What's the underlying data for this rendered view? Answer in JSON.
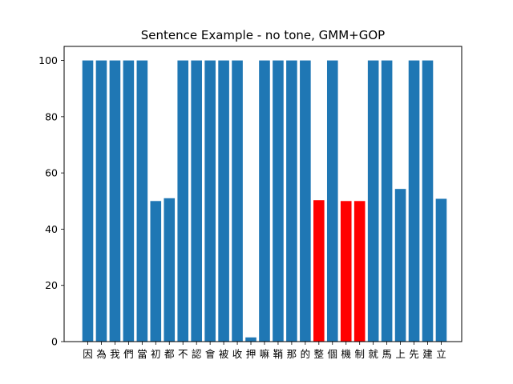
{
  "chart_data": {
    "type": "bar",
    "title": "Sentence Example - no tone, GMM+GOP",
    "xlabel": "",
    "ylabel": "",
    "ylim": [
      0,
      105
    ],
    "yticks": [
      0,
      20,
      40,
      60,
      80,
      100
    ],
    "grid": false,
    "categories": [
      "因",
      "為",
      "我",
      "們",
      "當",
      "初",
      "都",
      "不",
      "認",
      "會",
      "被",
      "收",
      "押",
      "嘛",
      "鞘",
      "那",
      "的",
      "整",
      "個",
      "機",
      "制",
      "就",
      "馬",
      "上",
      "先",
      "建",
      "立"
    ],
    "values": [
      100,
      100,
      100,
      100,
      100,
      50,
      51,
      100,
      100,
      100,
      100,
      100,
      1.5,
      100,
      100,
      100,
      100,
      50.3,
      100,
      50,
      50,
      100,
      100,
      54.3,
      100,
      100,
      50.8
    ],
    "bar_colors": [
      "#1f77b4",
      "#1f77b4",
      "#1f77b4",
      "#1f77b4",
      "#1f77b4",
      "#1f77b4",
      "#1f77b4",
      "#1f77b4",
      "#1f77b4",
      "#1f77b4",
      "#1f77b4",
      "#1f77b4",
      "#1f77b4",
      "#1f77b4",
      "#1f77b4",
      "#1f77b4",
      "#1f77b4",
      "#ff0000",
      "#1f77b4",
      "#ff0000",
      "#ff0000",
      "#1f77b4",
      "#1f77b4",
      "#1f77b4",
      "#1f77b4",
      "#1f77b4",
      "#1f77b4"
    ]
  }
}
